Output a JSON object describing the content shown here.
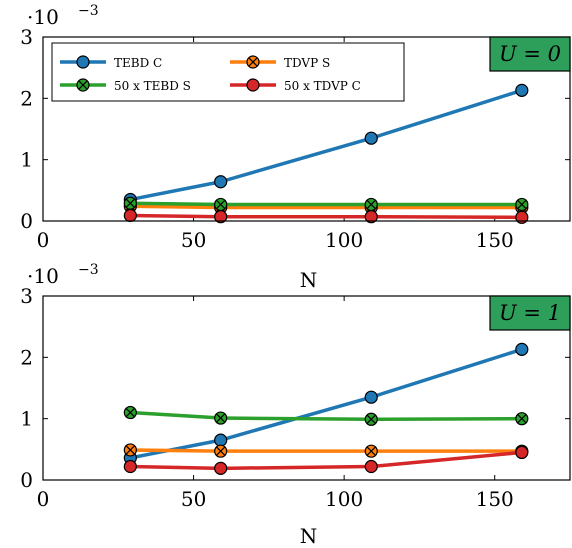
{
  "chart_data": [
    {
      "type": "line",
      "tag": "U = 0",
      "tag_color": "#2e9e5b",
      "xlabel": "N",
      "ylabel": "",
      "exponent": "·10",
      "exponent_sup": "−3",
      "xlim": [
        0,
        175
      ],
      "ylim": [
        0,
        3
      ],
      "xticks": [
        0,
        50,
        100,
        150
      ],
      "yticks": [
        0,
        1,
        2,
        3
      ],
      "x": [
        29,
        59,
        109,
        159
      ],
      "legend_position": "top-left",
      "series": [
        {
          "name": "TEBD C",
          "color": "#1f77b4",
          "marker": "circle",
          "values": [
            0.35,
            0.64,
            1.35,
            2.13
          ]
        },
        {
          "name": "TDVP S",
          "color": "#ff7f0e",
          "marker": "otimes",
          "values": [
            0.24,
            0.22,
            0.22,
            0.22
          ]
        },
        {
          "name": "50 x TEBD S",
          "color": "#2ca02c",
          "marker": "otimes",
          "values": [
            0.29,
            0.27,
            0.27,
            0.27
          ]
        },
        {
          "name": "50 x TDVP C",
          "color": "#d62728",
          "marker": "circle",
          "values": [
            0.09,
            0.07,
            0.07,
            0.06
          ]
        }
      ]
    },
    {
      "type": "line",
      "tag": "U = 1",
      "tag_color": "#2e9e5b",
      "xlabel": "N",
      "ylabel": "",
      "exponent": "·10",
      "exponent_sup": "−3",
      "xlim": [
        0,
        175
      ],
      "ylim": [
        0,
        3
      ],
      "xticks": [
        0,
        50,
        100,
        150
      ],
      "yticks": [
        0,
        1,
        2,
        3
      ],
      "x": [
        29,
        59,
        109,
        159
      ],
      "series": [
        {
          "name": "TEBD C",
          "color": "#1f77b4",
          "marker": "circle",
          "values": [
            0.36,
            0.65,
            1.35,
            2.13
          ]
        },
        {
          "name": "TDVP S",
          "color": "#ff7f0e",
          "marker": "otimes",
          "values": [
            0.49,
            0.47,
            0.47,
            0.47
          ]
        },
        {
          "name": "50 x TEBD S",
          "color": "#2ca02c",
          "marker": "otimes",
          "values": [
            1.1,
            1.01,
            0.99,
            1.0
          ]
        },
        {
          "name": "50 x TDVP C",
          "color": "#d62728",
          "marker": "circle",
          "values": [
            0.22,
            0.19,
            0.22,
            0.45
          ]
        }
      ]
    }
  ]
}
